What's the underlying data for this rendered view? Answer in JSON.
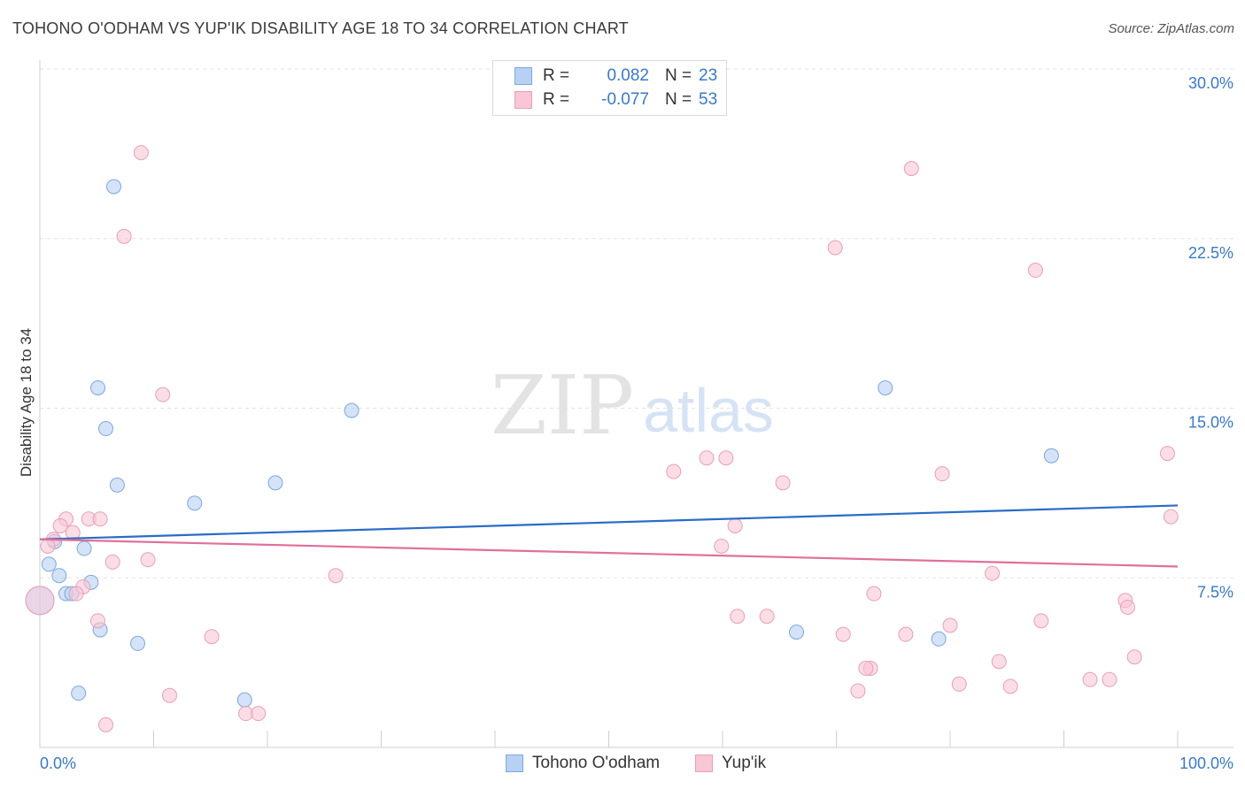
{
  "title": "TOHONO O'ODHAM VS YUP'IK DISABILITY AGE 18 TO 34 CORRELATION CHART",
  "source": "Source: ZipAtlas.com",
  "watermark": {
    "zip": "ZIP",
    "atlas": "atlas"
  },
  "legend": {
    "rows": [
      {
        "r_label": "R =",
        "r_value": "0.082",
        "n_label": "N =",
        "n_value": "23",
        "fill": "#b8d1f3",
        "stroke": "#7ea6dc"
      },
      {
        "r_label": "R =",
        "r_value": "-0.077",
        "n_label": "N =",
        "n_value": "53",
        "fill": "#f8c6d5",
        "stroke": "#e8a0b8"
      }
    ]
  },
  "bottom_legend": [
    {
      "label": "Tohono O'odham",
      "fill": "#b8d1f3",
      "stroke": "#7ea6dc"
    },
    {
      "label": "Yup'ik",
      "fill": "#f8c6d5",
      "stroke": "#e8a0b8"
    }
  ],
  "chart_data": {
    "type": "scatter",
    "title": "TOHONO O'ODHAM VS YUP'IK DISABILITY AGE 18 TO 34 CORRELATION CHART",
    "xlabel": "",
    "ylabel": "Disability Age 18 to 34",
    "xlim": [
      0,
      100
    ],
    "ylim": [
      0,
      30
    ],
    "x_tick_labels": [
      "0.0%",
      "100.0%"
    ],
    "y_ticks": [
      7.5,
      15.0,
      22.5,
      30.0
    ],
    "y_tick_labels": [
      "7.5%",
      "15.0%",
      "22.5%",
      "30.0%"
    ],
    "grid": true,
    "series": [
      {
        "name": "Tohono O'odham",
        "color": "#7ea6dc",
        "fill": "#b8d1f3",
        "line_color": "#2a6cc7",
        "trend": {
          "x": [
            0,
            100
          ],
          "y": [
            9.2,
            10.7
          ]
        },
        "points": [
          {
            "x": 6.5,
            "y": 24.8
          },
          {
            "x": 5.1,
            "y": 15.9
          },
          {
            "x": 5.8,
            "y": 14.1
          },
          {
            "x": 27.4,
            "y": 14.9
          },
          {
            "x": 6.8,
            "y": 11.6
          },
          {
            "x": 20.7,
            "y": 11.7
          },
          {
            "x": 13.6,
            "y": 10.8
          },
          {
            "x": 1.3,
            "y": 9.1
          },
          {
            "x": 3.9,
            "y": 8.8
          },
          {
            "x": 0.8,
            "y": 8.1
          },
          {
            "x": 1.7,
            "y": 7.6
          },
          {
            "x": 4.5,
            "y": 7.3
          },
          {
            "x": 2.3,
            "y": 6.8
          },
          {
            "x": 2.8,
            "y": 6.8
          },
          {
            "x": 5.3,
            "y": 5.2
          },
          {
            "x": 8.6,
            "y": 4.6
          },
          {
            "x": 3.4,
            "y": 2.4
          },
          {
            "x": 18.0,
            "y": 2.1
          },
          {
            "x": 74.3,
            "y": 15.9
          },
          {
            "x": 88.9,
            "y": 12.9
          },
          {
            "x": 66.5,
            "y": 5.1
          },
          {
            "x": 79.0,
            "y": 4.8
          },
          {
            "x": 0.0,
            "y": 6.5
          }
        ]
      },
      {
        "name": "Yup'ik",
        "color": "#e8a0b8",
        "fill": "#f8c6d5",
        "line_color": "#e0709a",
        "trend": {
          "x": [
            0,
            100
          ],
          "y": [
            9.2,
            8.0
          ]
        },
        "points": [
          {
            "x": 8.9,
            "y": 26.3
          },
          {
            "x": 7.4,
            "y": 22.6
          },
          {
            "x": 10.8,
            "y": 15.6
          },
          {
            "x": 2.3,
            "y": 10.1
          },
          {
            "x": 4.3,
            "y": 10.1
          },
          {
            "x": 5.3,
            "y": 10.1
          },
          {
            "x": 1.8,
            "y": 9.8
          },
          {
            "x": 2.9,
            "y": 9.5
          },
          {
            "x": 1.2,
            "y": 9.2
          },
          {
            "x": 0.7,
            "y": 8.9
          },
          {
            "x": 9.5,
            "y": 8.3
          },
          {
            "x": 6.4,
            "y": 8.2
          },
          {
            "x": 3.8,
            "y": 7.1
          },
          {
            "x": 3.2,
            "y": 6.8
          },
          {
            "x": 5.1,
            "y": 5.6
          },
          {
            "x": 15.1,
            "y": 4.9
          },
          {
            "x": 11.4,
            "y": 2.3
          },
          {
            "x": 18.1,
            "y": 1.5
          },
          {
            "x": 19.2,
            "y": 1.5
          },
          {
            "x": 5.8,
            "y": 1.0
          },
          {
            "x": 26.0,
            "y": 7.6
          },
          {
            "x": 76.6,
            "y": 25.6
          },
          {
            "x": 87.5,
            "y": 21.1
          },
          {
            "x": 69.9,
            "y": 22.1
          },
          {
            "x": 55.7,
            "y": 12.2
          },
          {
            "x": 58.6,
            "y": 12.8
          },
          {
            "x": 60.3,
            "y": 12.8
          },
          {
            "x": 65.3,
            "y": 11.7
          },
          {
            "x": 79.3,
            "y": 12.1
          },
          {
            "x": 99.1,
            "y": 13.0
          },
          {
            "x": 61.1,
            "y": 9.8
          },
          {
            "x": 59.9,
            "y": 8.9
          },
          {
            "x": 99.4,
            "y": 10.2
          },
          {
            "x": 83.7,
            "y": 7.7
          },
          {
            "x": 73.3,
            "y": 6.8
          },
          {
            "x": 95.4,
            "y": 6.5
          },
          {
            "x": 95.6,
            "y": 6.2
          },
          {
            "x": 61.3,
            "y": 5.8
          },
          {
            "x": 63.9,
            "y": 5.8
          },
          {
            "x": 70.6,
            "y": 5.0
          },
          {
            "x": 76.1,
            "y": 5.0
          },
          {
            "x": 80.0,
            "y": 5.4
          },
          {
            "x": 88.0,
            "y": 5.6
          },
          {
            "x": 73.0,
            "y": 3.5
          },
          {
            "x": 72.6,
            "y": 3.5
          },
          {
            "x": 84.3,
            "y": 3.8
          },
          {
            "x": 96.2,
            "y": 4.0
          },
          {
            "x": 80.8,
            "y": 2.8
          },
          {
            "x": 85.3,
            "y": 2.7
          },
          {
            "x": 92.3,
            "y": 3.0
          },
          {
            "x": 94.0,
            "y": 3.0
          },
          {
            "x": 71.9,
            "y": 2.5
          },
          {
            "x": 0.0,
            "y": 6.5
          }
        ]
      }
    ]
  }
}
